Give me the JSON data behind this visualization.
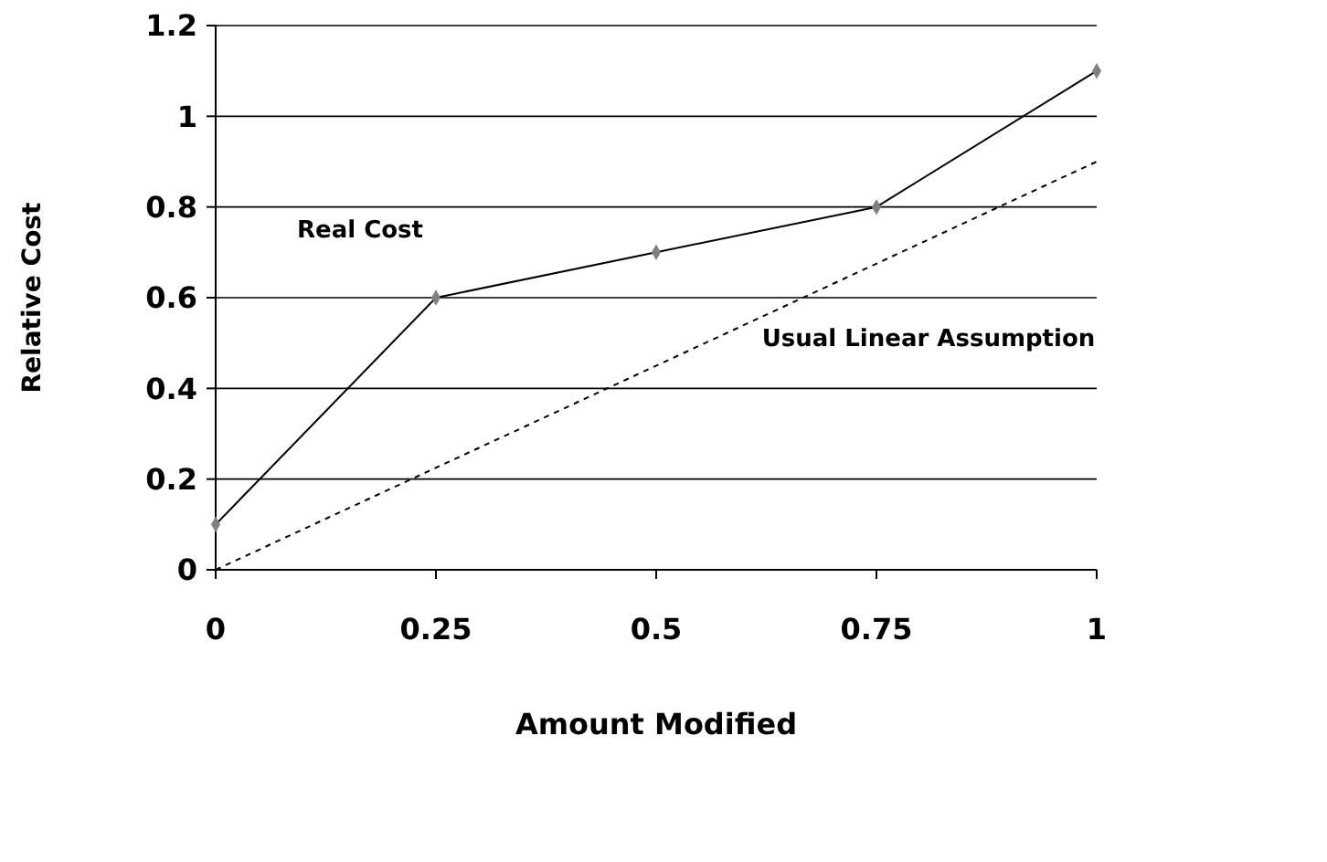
{
  "chart_data": {
    "type": "line",
    "xlabel": "Amount Modified",
    "ylabel": "Relative Cost",
    "xlim": [
      0,
      1
    ],
    "xticks": [
      0,
      0.25,
      0.5,
      0.75,
      1
    ],
    "ylim": [
      0,
      1.2
    ],
    "yticks": [
      0,
      0.2,
      0.4,
      0.6,
      0.8,
      1,
      1.2
    ],
    "grid": "y",
    "series": [
      {
        "name": "Real Cost",
        "color": "#000000",
        "x": [
          0,
          0.25,
          0.5,
          0.75,
          1
        ],
        "values": [
          0.1,
          0.6,
          0.7,
          0.8,
          1.1
        ],
        "marker": "diamond",
        "line_style": "solid"
      },
      {
        "name": "Usual Linear Assumption",
        "color": "#000000",
        "x": [
          0,
          1
        ],
        "values": [
          0,
          0.9
        ],
        "marker": "none",
        "line_style": "dashed"
      }
    ]
  }
}
